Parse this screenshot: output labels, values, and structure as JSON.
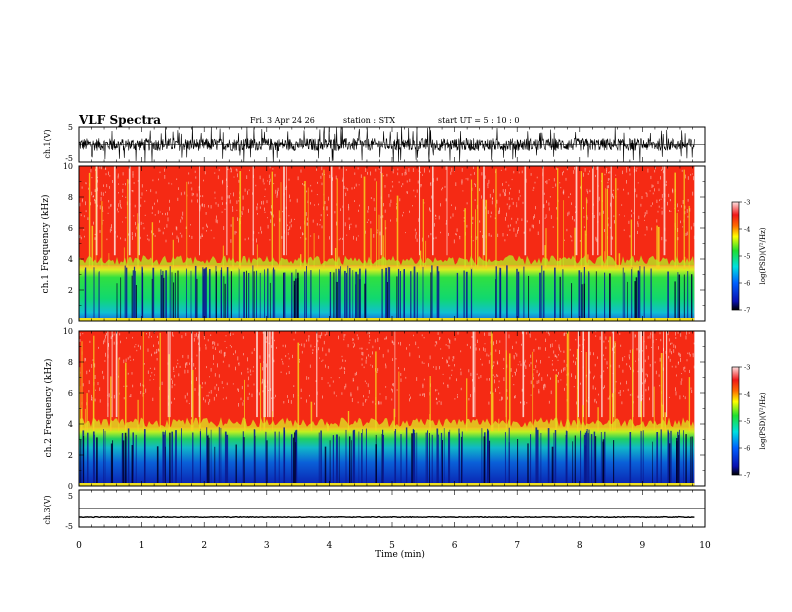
{
  "header": {
    "title": "VLF Spectra",
    "date": "Fri. 3 Apr 24 26",
    "station": "station : STX",
    "start": "start UT = 5 : 10 : 0"
  },
  "colors": {
    "spectrogram_bg": "#f52a14",
    "band_green": "#1fe04a",
    "band_blue": "#0a28c8",
    "waveform": "#000000"
  },
  "colorbar": {
    "label": "log(PSD)(V²/Hz)",
    "ticks": [
      "-3",
      "-4",
      "-5",
      "-6",
      "-7"
    ]
  },
  "chart_data": [
    {
      "id": "ch1_waveform",
      "type": "line",
      "ylabel": "ch.1(V)",
      "yticks": [
        "5",
        "-5"
      ],
      "ylim": [
        -5,
        5
      ],
      "xlim": [
        0,
        10
      ],
      "x_end": 9.83,
      "baseline": 0,
      "amplitude_typical": 3,
      "note_values": "high-rate noisy waveform, values range approx -5 to 5 V"
    },
    {
      "id": "ch1_spectrogram",
      "type": "heatmap",
      "ylabel": "ch.1 Frequency (kHz)",
      "yticks": [
        "0",
        "2",
        "4",
        "6",
        "8",
        "10"
      ],
      "ylim": [
        0,
        10
      ],
      "xlim": [
        0,
        10
      ],
      "x_end": 9.83,
      "band_upper_kHz": 3.6,
      "zrange": [
        -7,
        -3
      ]
    },
    {
      "id": "ch2_spectrogram",
      "type": "heatmap",
      "ylabel": "ch.2 Frequency (kHz)",
      "yticks": [
        "0",
        "2",
        "4",
        "6",
        "8",
        "10"
      ],
      "ylim": [
        0,
        10
      ],
      "xlim": [
        0,
        10
      ],
      "x_end": 9.83,
      "band_upper_kHz": 3.8,
      "zrange": [
        -7,
        -3
      ]
    },
    {
      "id": "ch3_waveform",
      "type": "line",
      "ylabel": "ch.3(V)",
      "yticks": [
        "5",
        "-5"
      ],
      "ylim": [
        -5,
        5
      ],
      "xlim": [
        0,
        10
      ],
      "x_end": 9.83,
      "baseline": -2.3,
      "amplitude_typical": 0.1
    }
  ],
  "xaxis": {
    "label": "Time (min)",
    "ticks": [
      "0",
      "1",
      "2",
      "3",
      "4",
      "5",
      "6",
      "7",
      "8",
      "9",
      "10"
    ]
  }
}
